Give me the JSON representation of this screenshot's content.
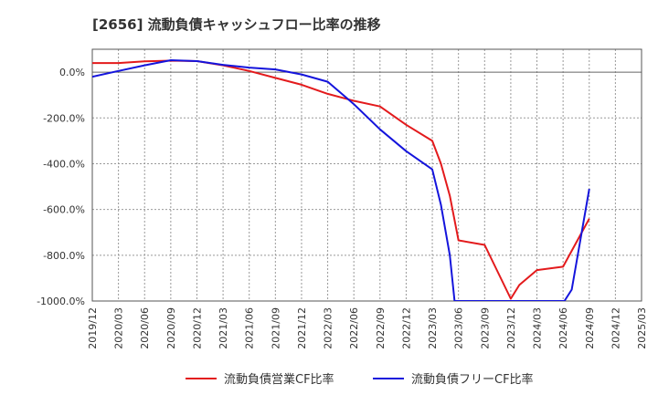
{
  "chart_data": {
    "type": "line",
    "title": "[2656]  流動負債キャッシュフロー比率の推移",
    "xlabel": "",
    "ylabel": "",
    "ylim": [
      -1000,
      100
    ],
    "y_ticks": [
      0,
      -200,
      -400,
      -600,
      -800,
      -1000
    ],
    "y_tick_labels": [
      "0.0%",
      "-200.0%",
      "-400.0%",
      "-600.0%",
      "-800.0%",
      "-1000.0%"
    ],
    "x_tick_labels": [
      "2019/12",
      "2020/03",
      "2020/06",
      "2020/09",
      "2020/12",
      "2021/03",
      "2021/06",
      "2021/09",
      "2021/12",
      "2022/03",
      "2022/06",
      "2022/09",
      "2022/12",
      "2023/03",
      "2023/06",
      "2023/09",
      "2023/12",
      "2024/03",
      "2024/06",
      "2024/09",
      "2024/12",
      "2025/03"
    ],
    "grid": true,
    "legend_position": "bottom-center",
    "series": [
      {
        "name": "流動負債営業CF比率",
        "color": "#e31a1c",
        "points": [
          [
            0,
            40
          ],
          [
            1,
            40
          ],
          [
            2,
            47
          ],
          [
            3,
            50
          ],
          [
            4,
            48
          ],
          [
            5,
            30
          ],
          [
            6,
            5
          ],
          [
            7,
            -25
          ],
          [
            8,
            -55
          ],
          [
            9,
            -95
          ],
          [
            10,
            -125
          ],
          [
            11,
            -150
          ],
          [
            12,
            -230
          ],
          [
            13,
            -300
          ],
          [
            13.33,
            -400
          ],
          [
            13.67,
            -540
          ],
          [
            14,
            -735
          ],
          [
            15,
            -755
          ],
          [
            16,
            -990
          ],
          [
            16.33,
            -930
          ],
          [
            17,
            -865
          ],
          [
            18,
            -850
          ],
          [
            19,
            -640
          ]
        ]
      },
      {
        "name": "流動負債フリーCF比率",
        "color": "#1414dc",
        "points": [
          [
            0,
            -20
          ],
          [
            1,
            5
          ],
          [
            2,
            30
          ],
          [
            3,
            52
          ],
          [
            4,
            48
          ],
          [
            5,
            32
          ],
          [
            6,
            20
          ],
          [
            7,
            12
          ],
          [
            8,
            -10
          ],
          [
            9,
            -42
          ],
          [
            10,
            -140
          ],
          [
            11,
            -250
          ],
          [
            12,
            -345
          ],
          [
            13,
            -425
          ],
          [
            13.33,
            -580
          ],
          [
            13.67,
            -800
          ],
          [
            13.85,
            -1000
          ],
          [
            18.05,
            -1000
          ],
          [
            18.33,
            -950
          ],
          [
            19,
            -510
          ]
        ]
      }
    ]
  }
}
